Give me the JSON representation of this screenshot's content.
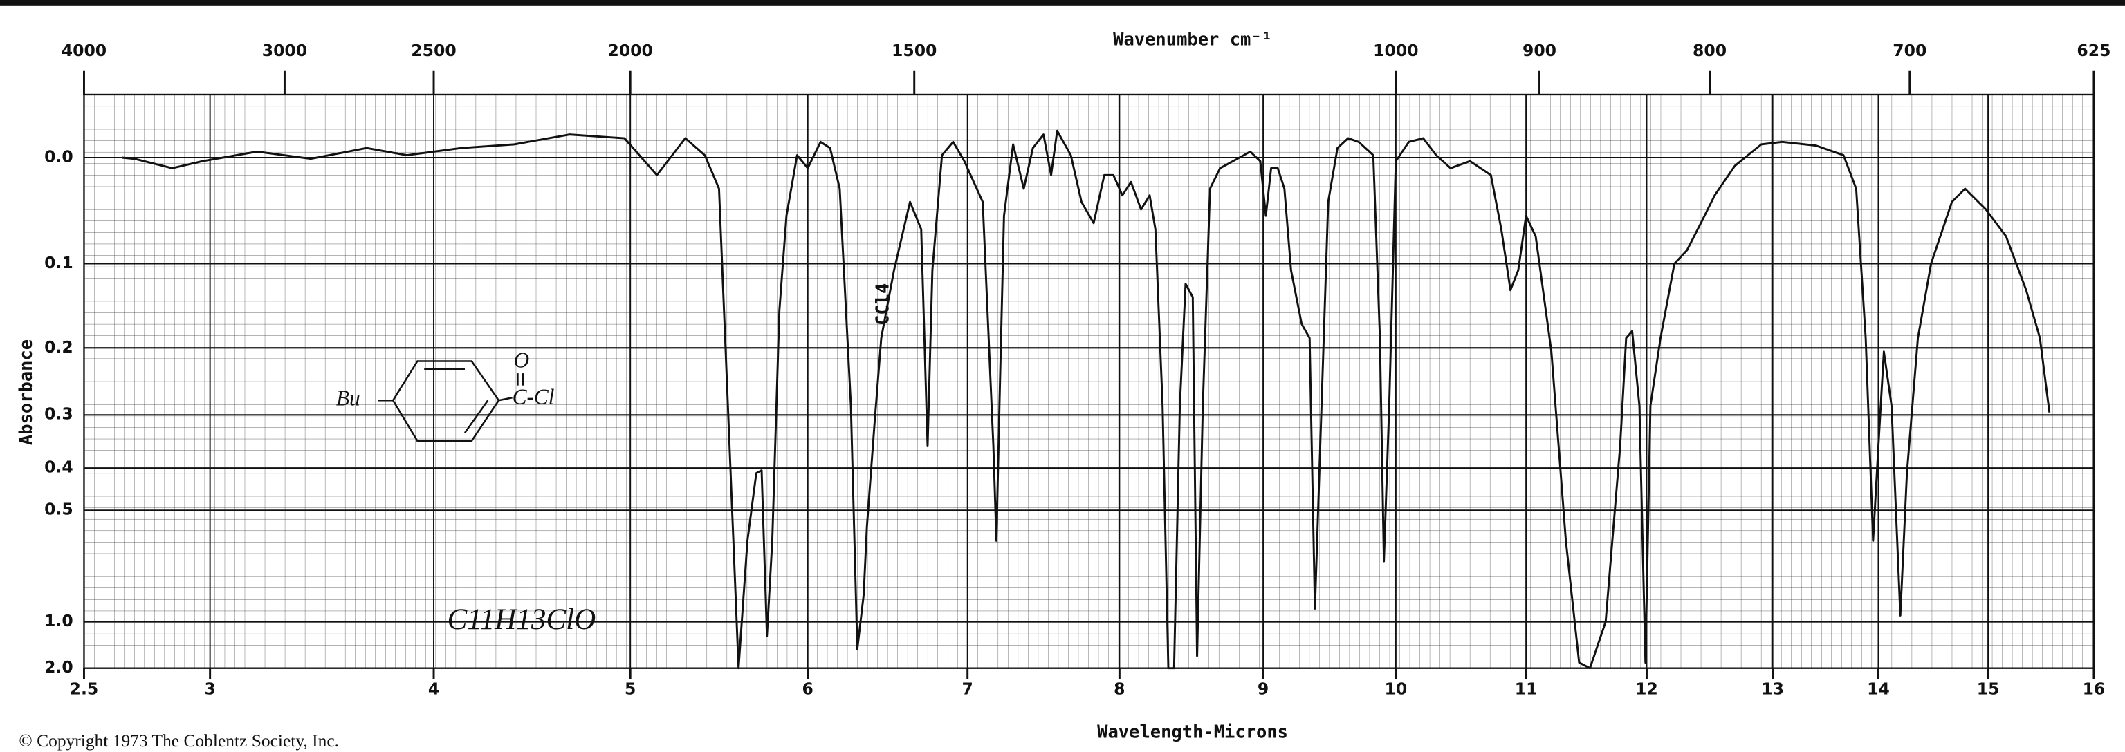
{
  "chart_data": {
    "type": "line",
    "xlabel": "Wavelength-Microns",
    "x2label": "Wavenumber cm⁻¹",
    "ylabel": "Absorbance",
    "footnote": "© Copyright 1973  The Coblentz Society, Inc.",
    "annotations": [
      "CCl4",
      "C11H13ClO"
    ],
    "structure_labels": [
      "Bu",
      "O",
      "C-Cl"
    ],
    "yscale": "transmittance",
    "grid": true,
    "color": "#111111",
    "xlim": [
      2.5,
      16
    ],
    "xticks": [
      2.5,
      3,
      4,
      5,
      6,
      7,
      8,
      9,
      10,
      11,
      12,
      13,
      14,
      15,
      16
    ],
    "x2ticks": [
      4000,
      3000,
      2500,
      2000,
      1500,
      1000,
      900,
      800,
      700,
      625
    ],
    "ylim": [
      -0.05,
      2
    ],
    "yticks": [
      {
        "value": 0,
        "label": "0.0"
      },
      0.1,
      0.2,
      0.3,
      0.4,
      0.5,
      {
        "value": 1,
        "label": "1.0"
      },
      {
        "value": 2,
        "label": "2.0"
      }
    ],
    "x": [
      2.65,
      2.7,
      2.85,
      2.97,
      3.21,
      3.45,
      3.7,
      3.88,
      4.14,
      4.41,
      4.69,
      4.97,
      5.15,
      5.31,
      5.42,
      5.5,
      5.55,
      5.61,
      5.66,
      5.71,
      5.74,
      5.77,
      5.8,
      5.84,
      5.88,
      5.94,
      6.0,
      6.08,
      6.14,
      6.2,
      6.27,
      6.31,
      6.35,
      6.37,
      6.42,
      6.46,
      6.54,
      6.64,
      6.71,
      6.75,
      6.78,
      6.84,
      6.91,
      6.98,
      7.1,
      7.17,
      7.19,
      7.21,
      7.24,
      7.3,
      7.37,
      7.43,
      7.5,
      7.55,
      7.59,
      7.68,
      7.75,
      7.83,
      7.9,
      7.96,
      8.02,
      8.08,
      8.15,
      8.21,
      8.25,
      8.3,
      8.34,
      8.38,
      8.42,
      8.46,
      8.51,
      8.54,
      8.58,
      8.63,
      8.7,
      8.82,
      8.91,
      8.98,
      9.02,
      9.06,
      9.11,
      9.16,
      9.21,
      9.29,
      9.35,
      9.39,
      9.44,
      9.49,
      9.56,
      9.64,
      9.72,
      9.83,
      9.88,
      9.91,
      9.95,
      10.0,
      10.1,
      10.21,
      10.31,
      10.42,
      10.57,
      10.73,
      10.81,
      10.88,
      10.94,
      11.0,
      11.08,
      11.21,
      11.33,
      11.44,
      11.53,
      11.66,
      11.78,
      11.83,
      11.88,
      11.94,
      11.99,
      12.03,
      12.11,
      12.22,
      12.32,
      12.43,
      12.54,
      12.7,
      12.91,
      13.09,
      13.41,
      13.67,
      13.79,
      13.88,
      13.95,
      14.0,
      14.05,
      14.12,
      14.2,
      14.26,
      14.36,
      14.48,
      14.67,
      14.79,
      14.98,
      15.17,
      15.36,
      15.49,
      15.58
    ],
    "values": [
      0,
      0.001,
      0.009,
      0.003,
      -0.005,
      0.001,
      -0.008,
      -0.002,
      -0.008,
      -0.011,
      -0.019,
      -0.016,
      0.015,
      -0.016,
      -0.002,
      0.027,
      0.285,
      2.0,
      0.59,
      0.411,
      0.405,
      1.14,
      0.59,
      0.153,
      0.052,
      -0.002,
      0.009,
      -0.013,
      -0.008,
      0.027,
      0.285,
      1.33,
      0.818,
      0.548,
      0.307,
      0.187,
      0.107,
      0.039,
      0.065,
      0.356,
      0.107,
      -0.002,
      -0.013,
      0.003,
      0.039,
      0.356,
      0.59,
      0.285,
      0.052,
      -0.011,
      0.027,
      -0.008,
      -0.019,
      0.015,
      -0.022,
      -0.002,
      0.039,
      0.059,
      0.015,
      0.015,
      0.033,
      0.021,
      0.046,
      0.033,
      0.065,
      0.285,
      2.0,
      2.0,
      0.285,
      0.122,
      0.137,
      1.47,
      0.285,
      0.027,
      0.009,
      0.001,
      -0.005,
      0.003,
      0.052,
      0.009,
      0.009,
      0.027,
      0.107,
      0.169,
      0.187,
      0.901,
      0.285,
      0.039,
      -0.008,
      -0.016,
      -0.013,
      -0.002,
      0.187,
      0.663,
      0.285,
      0.003,
      -0.013,
      -0.016,
      -0.002,
      0.009,
      0.003,
      0.015,
      0.065,
      0.129,
      0.107,
      0.052,
      0.072,
      0.205,
      0.59,
      1.68,
      2.0,
      1.0,
      0.356,
      0.187,
      0.178,
      0.285,
      1.68,
      0.285,
      0.187,
      0.1,
      0.086,
      0.059,
      0.033,
      0.007,
      -0.011,
      -0.013,
      -0.01,
      -0.002,
      0.027,
      0.187,
      0.59,
      0.356,
      0.205,
      0.285,
      0.95,
      0.411,
      0.187,
      0.1,
      0.039,
      0.027,
      0.046,
      0.072,
      0.129,
      0.187,
      0.296
    ]
  }
}
